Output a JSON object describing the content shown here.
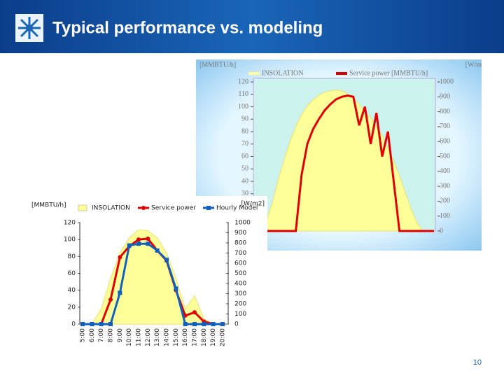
{
  "title": "Typical performance vs. modeling",
  "page_number": "10",
  "chart_data": [
    {
      "type": "line",
      "y_label": "[MMBTU/h]",
      "y2_label": "[W/m",
      "categories": [
        null,
        null,
        null,
        null,
        null,
        null,
        null,
        null,
        null,
        null,
        null,
        null,
        null,
        null,
        null,
        null,
        null,
        null,
        null,
        null,
        null,
        null,
        null,
        null,
        null,
        null,
        null,
        null,
        null,
        null,
        null,
        null
      ],
      "ylim": [
        0,
        120
      ],
      "yticks": [
        30,
        40,
        50,
        60,
        70,
        80,
        90,
        100,
        110,
        120
      ],
      "y2lim": [
        0,
        1000
      ],
      "y2ticks": [
        0,
        100,
        200,
        300,
        400,
        500,
        600,
        700,
        800,
        900,
        1000
      ],
      "series": [
        {
          "name": "INSOLATION",
          "color": "#ffff99",
          "kind": "area",
          "axis": "y2",
          "values": [
            0,
            0,
            80,
            200,
            350,
            480,
            600,
            700,
            780,
            840,
            880,
            910,
            930,
            940,
            945,
            940,
            920,
            890,
            850,
            800,
            760,
            700,
            640,
            560,
            470,
            370,
            260,
            150,
            60,
            0,
            0,
            0
          ]
        },
        {
          "name": "Service power [MMBTU/h]",
          "color": "#e00000",
          "kind": "line",
          "values": [
            0,
            0,
            0,
            0,
            0,
            0,
            0,
            0,
            45,
            70,
            82,
            90,
            97,
            102,
            106,
            108,
            109,
            108,
            85,
            100,
            70,
            95,
            60,
            80,
            40,
            0,
            0,
            0,
            0,
            0,
            0,
            0
          ]
        }
      ]
    },
    {
      "type": "line",
      "y_label": "[MMBTU/h]",
      "y2_label": "[W/m2]",
      "categories": [
        "5:00",
        "6:00",
        "7:00",
        "8:00",
        "9:00",
        "10:00",
        "11:00",
        "12:00",
        "13:00",
        "14:00",
        "15:00",
        "16:00",
        "17:00",
        "18:00",
        "19:00",
        "20:00"
      ],
      "ylim": [
        0,
        120
      ],
      "yticks": [
        0,
        20,
        40,
        60,
        80,
        100,
        120
      ],
      "y2lim": [
        0,
        1000
      ],
      "y2ticks": [
        0,
        100,
        200,
        300,
        400,
        500,
        600,
        700,
        800,
        900,
        1000
      ],
      "series": [
        {
          "name": "INSOLATION",
          "color": "#ffff99",
          "kind": "area",
          "axis": "y2",
          "values": [
            0,
            0,
            150,
            450,
            700,
            850,
            930,
            920,
            850,
            700,
            450,
            150,
            280,
            50,
            0,
            0
          ]
        },
        {
          "name": "Service power",
          "color": "#e00000",
          "kind": "line",
          "marker": "circle",
          "values": [
            0,
            0,
            0,
            29,
            79,
            92,
            100,
            101,
            87,
            75,
            40,
            10,
            14,
            3,
            0,
            0
          ]
        },
        {
          "name": "Hourly Model",
          "color": "#1060c0",
          "kind": "line",
          "marker": "square",
          "values": [
            0,
            0,
            0,
            0,
            37,
            93,
            95,
            95,
            87,
            76,
            42,
            0,
            0,
            0,
            0,
            0
          ]
        }
      ]
    }
  ]
}
